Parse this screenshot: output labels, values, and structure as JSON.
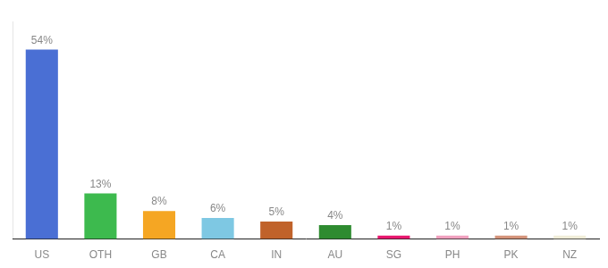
{
  "chart_data": {
    "type": "bar",
    "categories": [
      "US",
      "OTH",
      "GB",
      "CA",
      "IN",
      "AU",
      "SG",
      "PH",
      "PK",
      "NZ"
    ],
    "values": [
      54,
      13,
      8,
      6,
      5,
      4,
      1,
      1,
      1,
      1
    ],
    "value_labels": [
      "54%",
      "13%",
      "8%",
      "6%",
      "5%",
      "4%",
      "1%",
      "1%",
      "1%",
      "1%"
    ],
    "colors": [
      "#4a6fd4",
      "#3dba4e",
      "#f5a623",
      "#7ec8e3",
      "#c0622a",
      "#2e8b30",
      "#e8166e",
      "#f0a0be",
      "#d4937a",
      "#f0edd8"
    ],
    "ylim": [
      0,
      62
    ],
    "grid": false,
    "data_labels": true,
    "tick_labels": "x"
  }
}
